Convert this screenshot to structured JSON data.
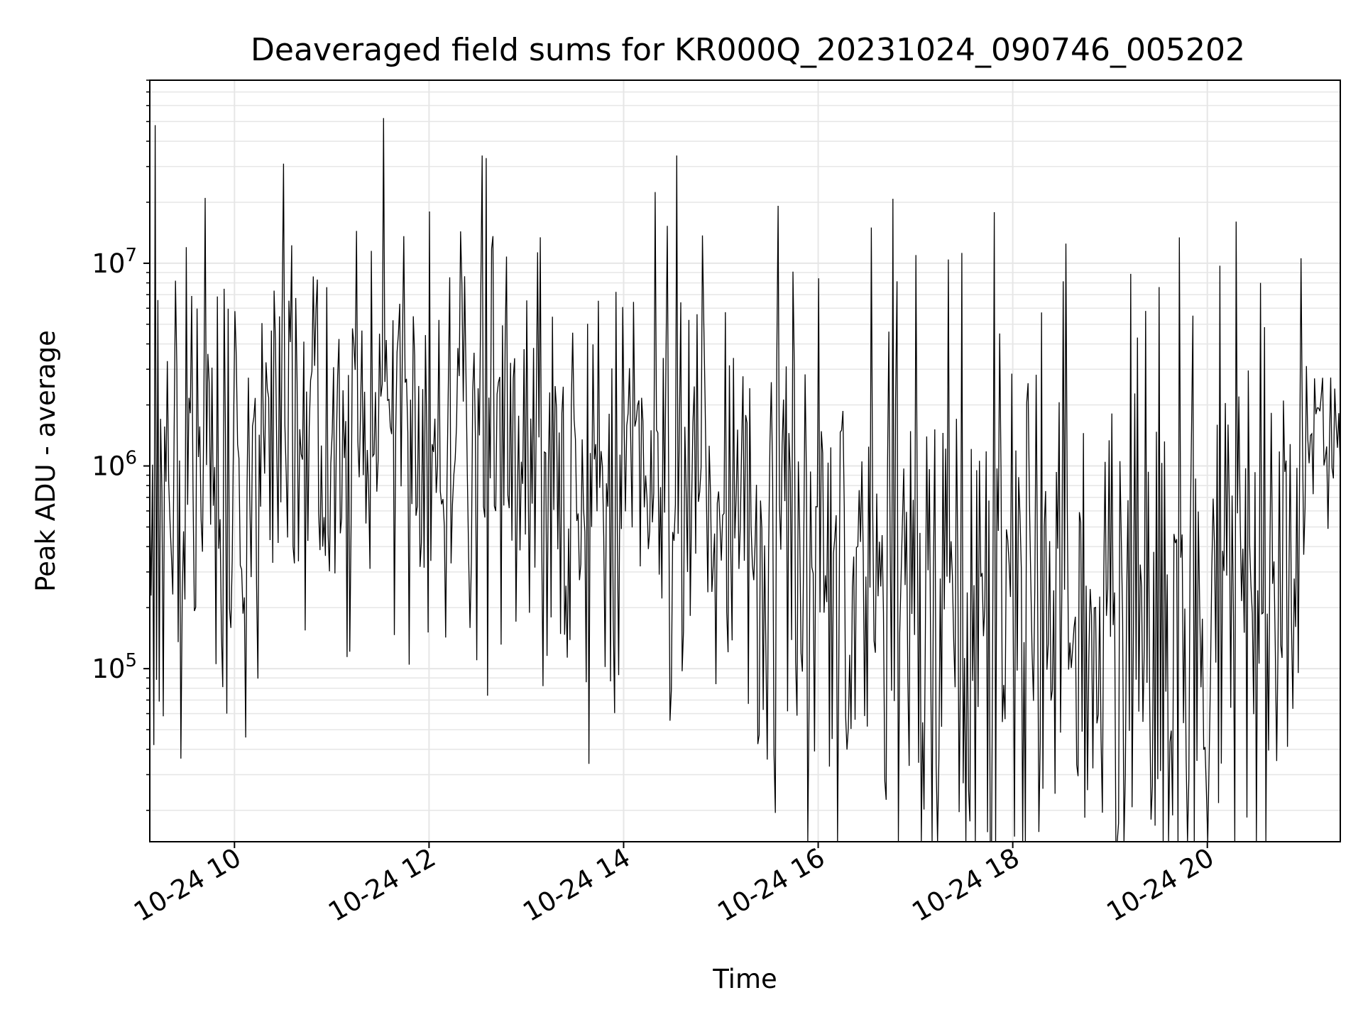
{
  "chart_data": {
    "type": "line",
    "title": "Deaveraged field sums for KR000Q_20231024_090746_005202",
    "xlabel": "Time",
    "ylabel": "Peak ADU - average",
    "x_axis": {
      "kind": "datetime",
      "range": [
        "2023-10-24T09:07:46",
        "2023-10-24T21:22:00"
      ],
      "ticks": [
        "2023-10-24T10:00",
        "2023-10-24T12:00",
        "2023-10-24T14:00",
        "2023-10-24T16:00",
        "2023-10-24T18:00",
        "2023-10-24T20:00"
      ],
      "tick_labels": [
        "10-24 10",
        "10-24 12",
        "10-24 14",
        "10-24 16",
        "10-24 18",
        "10-24 20"
      ]
    },
    "y_axis": {
      "scale": "log",
      "range": [
        14000,
        80000000
      ],
      "tick_values": [
        100000,
        1000000,
        10000000
      ],
      "tick_labels": [
        {
          "base": "10",
          "exp": "5"
        },
        {
          "base": "10",
          "exp": "6"
        },
        {
          "base": "10",
          "exp": "7"
        }
      ]
    },
    "grid": true,
    "line_color": "#000000",
    "grid_color": "#e6e6e6",
    "series": [
      {
        "sample_interval": "~50 s",
        "envelope": [
          {
            "t": "2023-10-24T09:07:46",
            "center": 700000,
            "spread": 0.55
          },
          {
            "t": "2023-10-24T09:40:00",
            "center": 550000,
            "spread": 0.6
          },
          {
            "t": "2023-10-24T10:10:00",
            "center": 800000,
            "spread": 0.55
          },
          {
            "t": "2023-10-24T11:00:00",
            "center": 1400000,
            "spread": 0.5
          },
          {
            "t": "2023-10-24T12:00:00",
            "center": 1700000,
            "spread": 0.5
          },
          {
            "t": "2023-10-24T12:40:00",
            "center": 1500000,
            "spread": 0.55
          },
          {
            "t": "2023-10-24T13:30:00",
            "center": 900000,
            "spread": 0.6
          },
          {
            "t": "2023-10-24T14:30:00",
            "center": 750000,
            "spread": 0.6
          },
          {
            "t": "2023-10-24T15:20:00",
            "center": 900000,
            "spread": 0.6
          },
          {
            "t": "2023-10-24T15:25:00",
            "center": 450000,
            "spread": 0.75
          },
          {
            "t": "2023-10-24T16:30:00",
            "center": 300000,
            "spread": 0.85
          },
          {
            "t": "2023-10-24T17:30:00",
            "center": 220000,
            "spread": 0.9
          },
          {
            "t": "2023-10-24T18:30:00",
            "center": 170000,
            "spread": 0.9
          },
          {
            "t": "2023-10-24T19:30:00",
            "center": 150000,
            "spread": 0.9
          },
          {
            "t": "2023-10-24T20:50:00",
            "center": 200000,
            "spread": 0.85
          },
          {
            "t": "2023-10-24T21:05:00",
            "center": 1300000,
            "spread": 0.25
          },
          {
            "t": "2023-10-24T21:22:00",
            "center": 1600000,
            "spread": 0.2
          }
        ],
        "spikes": [
          {
            "t": "2023-10-24T09:11:00",
            "value": 48000000
          },
          {
            "t": "2023-10-24T09:42:00",
            "value": 21000000
          },
          {
            "t": "2023-10-24T09:30:00",
            "value": 12000000
          },
          {
            "t": "2023-10-24T10:30:00",
            "value": 31000000
          },
          {
            "t": "2023-10-24T11:32:00",
            "value": 52000000
          },
          {
            "t": "2023-10-24T12:00:00",
            "value": 18000000
          },
          {
            "t": "2023-10-24T12:33:00",
            "value": 34000000
          },
          {
            "t": "2023-10-24T12:35:00",
            "value": 33000000
          },
          {
            "t": "2023-10-24T14:33:00",
            "value": 34000000
          },
          {
            "t": "2023-10-24T16:33:00",
            "value": 15000000
          },
          {
            "t": "2023-10-24T18:33:00",
            "value": 12500000
          },
          {
            "t": "2023-10-24T20:33:00",
            "value": 8000000
          }
        ],
        "dips": [
          {
            "t": "2023-10-24T09:10:00",
            "value": 42000
          },
          {
            "t": "2023-10-24T09:27:00",
            "value": 36000
          },
          {
            "t": "2023-10-24T09:55:00",
            "value": 60000
          },
          {
            "t": "2023-10-24T17:33:00",
            "value": 25000
          },
          {
            "t": "2023-10-24T19:25:00",
            "value": 18000
          }
        ]
      }
    ]
  }
}
